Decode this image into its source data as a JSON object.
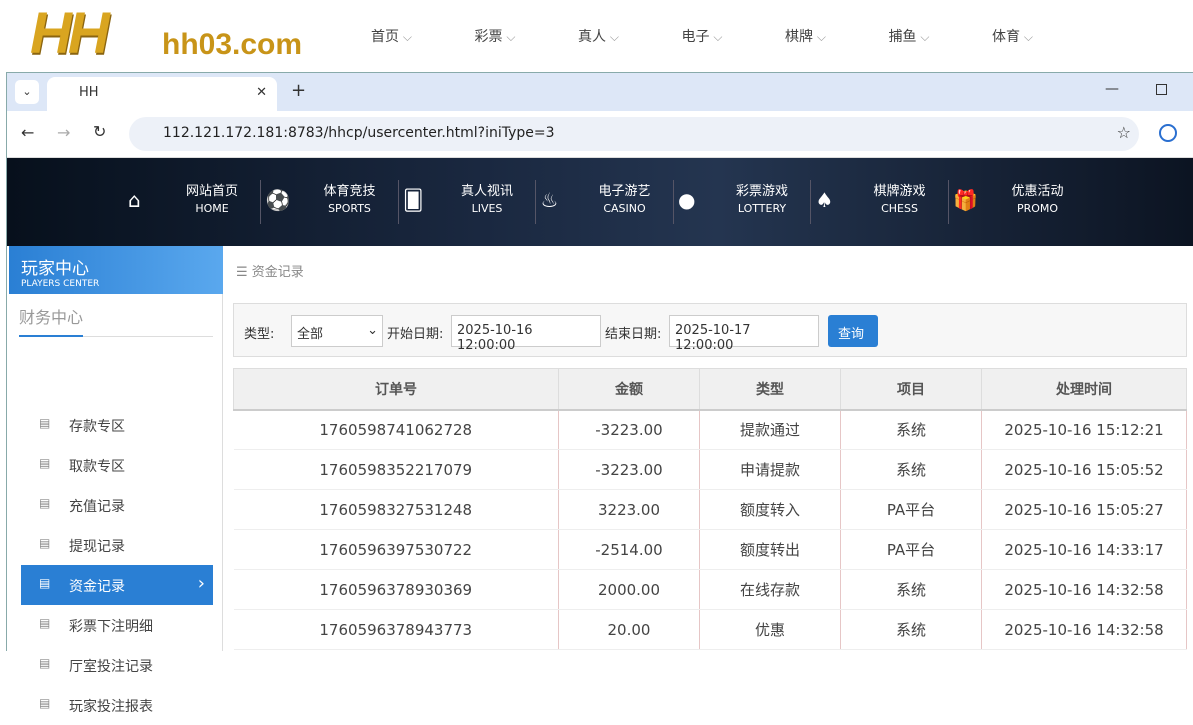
{
  "header": {
    "logo": "HH",
    "domain": "hh03.com",
    "nav": [
      "首页",
      "彩票",
      "真人",
      "电子",
      "棋牌",
      "捕鱼",
      "体育"
    ]
  },
  "browser": {
    "tab_title": "HH",
    "url": "112.121.172.181:8783/hhcp/usercenter.html?iniType=3"
  },
  "site_nav": [
    {
      "label": "网站首页",
      "sub": "HOME"
    },
    {
      "label": "体育竞技",
      "sub": "SPORTS"
    },
    {
      "label": "真人视讯",
      "sub": "LIVES"
    },
    {
      "label": "电子游艺",
      "sub": "CASINO"
    },
    {
      "label": "彩票游戏",
      "sub": "LOTTERY"
    },
    {
      "label": "棋牌游戏",
      "sub": "CHESS"
    },
    {
      "label": "优惠活动",
      "sub": "PROMO"
    }
  ],
  "sidebar": {
    "title": "玩家中心",
    "subtitle": "PLAYERS CENTER",
    "section": "财务中心",
    "active": 4,
    "items": [
      "存款专区",
      "取款专区",
      "充值记录",
      "提现记录",
      "资金记录",
      "彩票下注明细",
      "厅室投注记录",
      "玩家投注报表"
    ]
  },
  "breadcrumb": "资金记录",
  "filter": {
    "type_label": "类型:",
    "type_value": "全部",
    "start_label": "开始日期:",
    "start": "2025-10-16 12:00:00",
    "end_label": "结束日期:",
    "end": "2025-10-17 12:00:00",
    "button": "查询"
  },
  "table": {
    "headers": [
      "订单号",
      "金额",
      "类型",
      "项目",
      "处理时间"
    ],
    "rows": [
      [
        "1760598741062728",
        "-3223.00",
        "提款通过",
        "系统",
        "2025-10-16 15:12:21"
      ],
      [
        "1760598352217079",
        "-3223.00",
        "申请提款",
        "系统",
        "2025-10-16 15:05:52"
      ],
      [
        "1760598327531248",
        "3223.00",
        "额度转入",
        "PA平台",
        "2025-10-16 15:05:27"
      ],
      [
        "1760596397530722",
        "-2514.00",
        "额度转出",
        "PA平台",
        "2025-10-16 14:33:17"
      ],
      [
        "1760596378930369",
        "2000.00",
        "在线存款",
        "系统",
        "2025-10-16 14:32:58"
      ],
      [
        "1760596378943773",
        "20.00",
        "优惠",
        "系统",
        "2025-10-16 14:32:58"
      ]
    ]
  }
}
